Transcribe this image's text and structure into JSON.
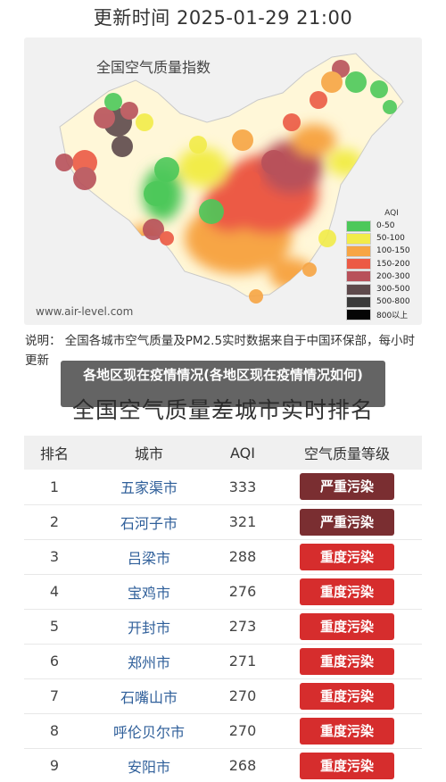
{
  "header": {
    "update_time": "更新时间 2025-01-29 21:00"
  },
  "map": {
    "title": "全国空气质量指数",
    "watermark": "www.air-level.com",
    "legend": {
      "title": "AQI",
      "items": [
        {
          "label": "0-50",
          "color": "#4dc85a"
        },
        {
          "label": "50-100",
          "color": "#f2ec4a"
        },
        {
          "label": "100-150",
          "color": "#f7a544"
        },
        {
          "label": "150-200",
          "color": "#ec5a45"
        },
        {
          "label": "200-300",
          "color": "#b8515a"
        },
        {
          "label": "300-500",
          "color": "#5e4a4c"
        },
        {
          "label": "500-800",
          "color": "#3a3a3a"
        },
        {
          "label": "800以上",
          "color": "#050505"
        }
      ]
    }
  },
  "note": "说明：  全国各城市空气质量及PM2.5实时数据来自于中国环保部，每小时更新",
  "overlay_title": "各地区现在疫情情况(各地区现在疫情情况如何)",
  "ranking": {
    "title": "全国空气质量差城市实时排名",
    "headers": [
      "排名",
      "城市",
      "AQI",
      "空气质量等级"
    ],
    "rows": [
      {
        "rank": "1",
        "city": "五家渠市",
        "aqi": "333",
        "level": "严重污染",
        "color": "#7a2e31"
      },
      {
        "rank": "2",
        "city": "石河子市",
        "aqi": "321",
        "level": "严重污染",
        "color": "#7a2e31"
      },
      {
        "rank": "3",
        "city": "吕梁市",
        "aqi": "288",
        "level": "重度污染",
        "color": "#d62d2d"
      },
      {
        "rank": "4",
        "city": "宝鸡市",
        "aqi": "276",
        "level": "重度污染",
        "color": "#d62d2d"
      },
      {
        "rank": "5",
        "city": "开封市",
        "aqi": "273",
        "level": "重度污染",
        "color": "#d62d2d"
      },
      {
        "rank": "6",
        "city": "郑州市",
        "aqi": "271",
        "level": "重度污染",
        "color": "#d62d2d"
      },
      {
        "rank": "7",
        "city": "石嘴山市",
        "aqi": "270",
        "level": "重度污染",
        "color": "#d62d2d"
      },
      {
        "rank": "8",
        "city": "呼伦贝尔市",
        "aqi": "270",
        "level": "重度污染",
        "color": "#d62d2d"
      },
      {
        "rank": "9",
        "city": "安阳市",
        "aqi": "268",
        "level": "重度污染",
        "color": "#d62d2d"
      }
    ]
  }
}
